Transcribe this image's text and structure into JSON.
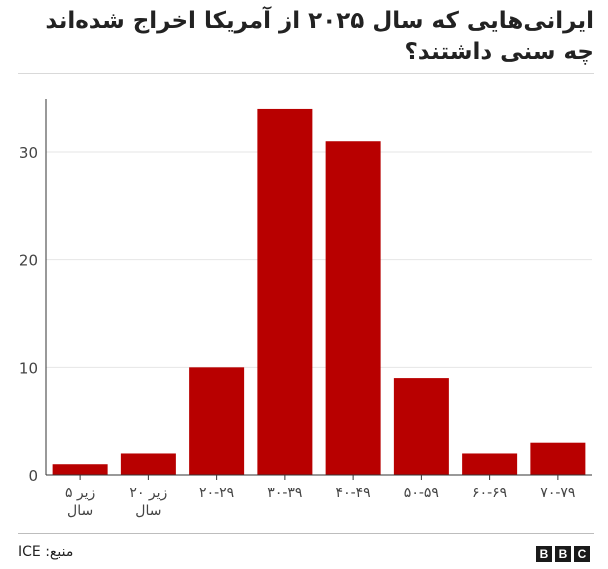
{
  "chart_data": {
    "type": "bar",
    "title": "ایرانی‌هایی که سال ۲۰۲۵ از آمریکا اخراج شده‌اند چه سنی داشتند؟",
    "categories": [
      "زیر ۵ سال",
      "زیر ۲۰ سال",
      "۲۰-۲۹",
      "۳۰-۳۹",
      "۴۰-۴۹",
      "۵۰-۵۹",
      "۶۰-۶۹",
      "۷۰-۷۹"
    ],
    "category_lines": [
      [
        "زیر ۵",
        "سال"
      ],
      [
        "زیر ۲۰",
        "سال"
      ],
      [
        "۲۰-۲۹"
      ],
      [
        "۳۰-۳۹"
      ],
      [
        "۴۰-۴۹"
      ],
      [
        "۵۰-۵۹"
      ],
      [
        "۶۰-۶۹"
      ],
      [
        "۷۰-۷۹"
      ]
    ],
    "values": [
      1,
      2,
      10,
      34,
      31,
      9,
      2,
      3
    ],
    "ylim": [
      0,
      36
    ],
    "yticks": [
      0,
      10,
      20,
      30
    ],
    "grid": true,
    "bar_color": "#b80000",
    "xlabel": "",
    "ylabel": ""
  },
  "source": "منبع: ICE",
  "logo": [
    "B",
    "B",
    "C"
  ]
}
